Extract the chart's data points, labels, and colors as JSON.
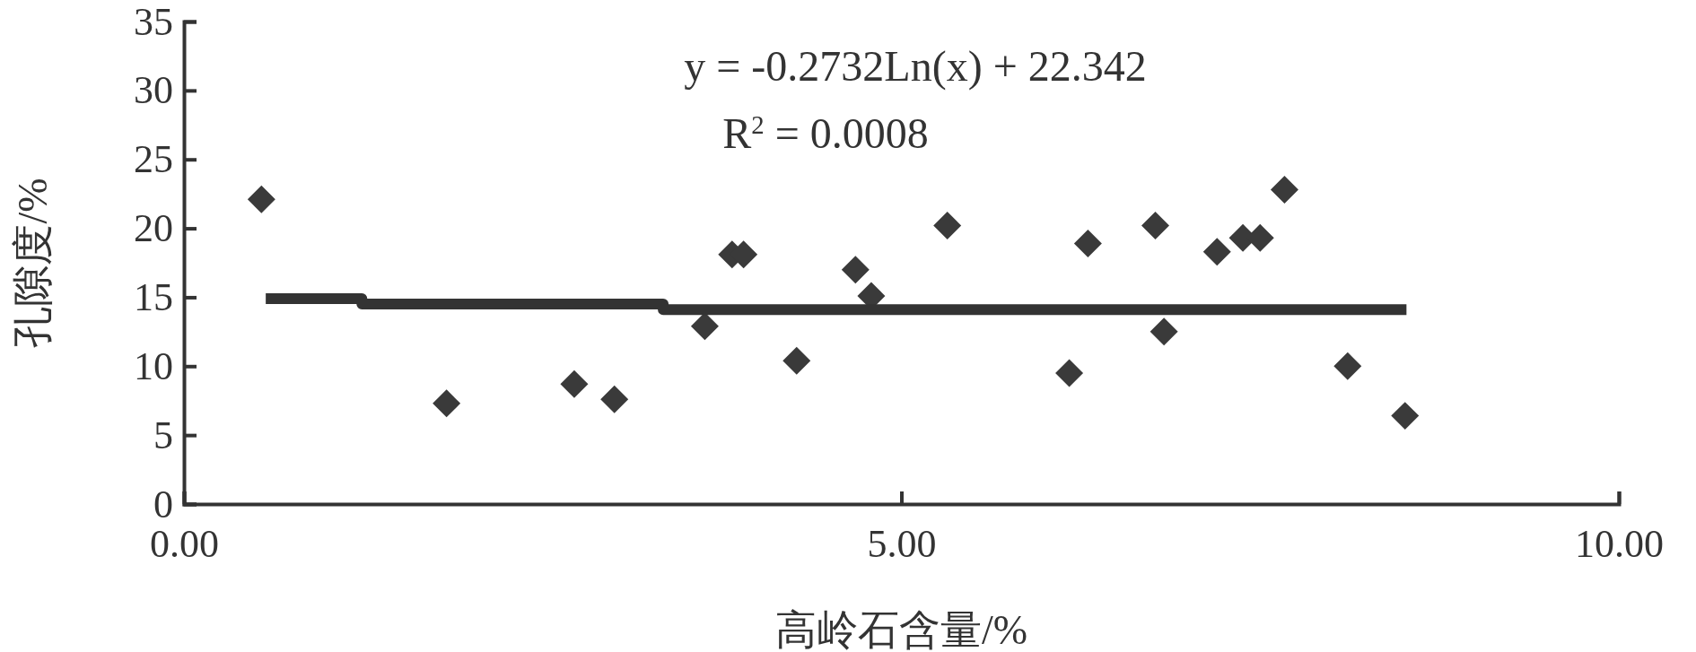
{
  "chart_data": {
    "type": "scatter",
    "xlabel": "高岭石含量/%",
    "ylabel": "孔隙度/%",
    "xlim": [
      0,
      10
    ],
    "xticks": [
      {
        "value": 0,
        "label": "0.00"
      },
      {
        "value": 5,
        "label": "5.00"
      },
      {
        "value": 10,
        "label": "10.00"
      }
    ],
    "ylim": [
      0,
      35
    ],
    "yticks": [
      0,
      5,
      10,
      15,
      20,
      25,
      30,
      35
    ],
    "grid": false,
    "annotations": [
      "y = -0.2732Ln(x) + 22.342",
      "R$^{2}$  = 0.0008"
    ],
    "series": [
      {
        "marker": "diamond",
        "color": "#3a3a3a",
        "x": [
          0.54,
          1.83,
          2.72,
          3.0,
          3.63,
          3.82,
          3.9,
          4.27,
          4.68,
          4.79,
          5.32,
          6.17,
          6.3,
          6.77,
          6.83,
          7.2,
          7.38,
          7.5,
          7.67,
          8.11,
          8.51
        ],
        "values": [
          22.1,
          7.3,
          8.7,
          7.6,
          12.9,
          18.1,
          18.1,
          10.4,
          17.0,
          15.1,
          20.2,
          9.5,
          18.9,
          20.2,
          12.5,
          18.3,
          19.3,
          19.3,
          22.8,
          10.0,
          6.4
        ]
      },
      {
        "type": "line",
        "marker": "none",
        "color": "#333333",
        "line_style": "solid",
        "x": [
          0.57,
          1.24,
          1.24,
          3.34,
          3.34,
          8.52
        ],
        "values": [
          14.9,
          14.9,
          14.5,
          14.5,
          14.1,
          14.1
        ]
      }
    ]
  }
}
